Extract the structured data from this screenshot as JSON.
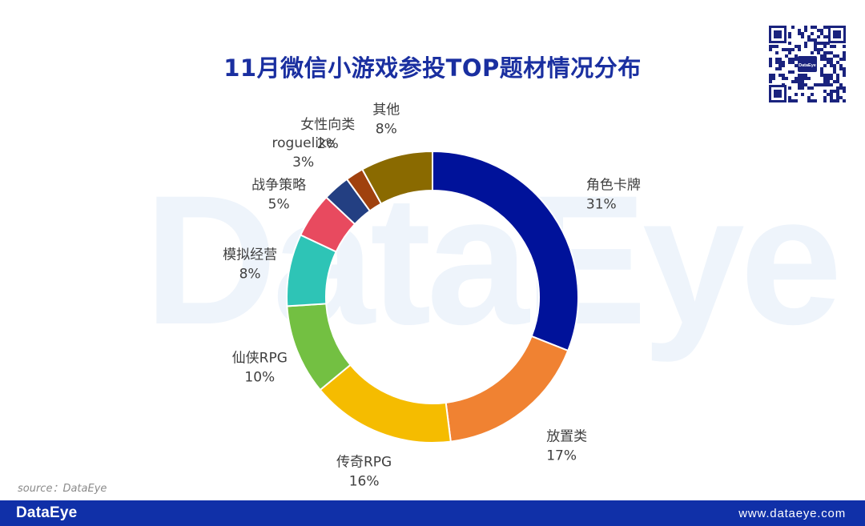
{
  "header": {
    "title": "11月微信小游戏参投TOP题材情况分布"
  },
  "watermark": {
    "text": "DataEye"
  },
  "qr": {
    "center_label": "DataEye"
  },
  "chart_data": {
    "type": "pie",
    "title": "11月微信小游戏参投TOP题材情况分布",
    "donut": true,
    "slices": [
      {
        "label": "角色卡牌",
        "value": 31,
        "display": "31%",
        "color": "#00129a"
      },
      {
        "label": "放置类",
        "value": 17,
        "display": "17%",
        "color": "#f08232"
      },
      {
        "label": "传奇RPG",
        "value": 16,
        "display": "16%",
        "color": "#f5bc00"
      },
      {
        "label": "仙侠RPG",
        "value": 10,
        "display": "10%",
        "color": "#73c042"
      },
      {
        "label": "模拟经营",
        "value": 8,
        "display": "8%",
        "color": "#2ec4b6"
      },
      {
        "label": "战争策略",
        "value": 5,
        "display": "5%",
        "color": "#e84a5f"
      },
      {
        "label": "roguelike",
        "value": 3,
        "display": "3%",
        "color": "#233f82"
      },
      {
        "label": "女性向类",
        "value": 2,
        "display": "2%",
        "color": "#a0410e"
      },
      {
        "label": "其他",
        "value": 8,
        "display": "8%",
        "color": "#8a6a00"
      }
    ]
  },
  "source": {
    "text": "source：DataEye"
  },
  "footer": {
    "logo": "DataEye",
    "url": "www.dataeye.com"
  }
}
